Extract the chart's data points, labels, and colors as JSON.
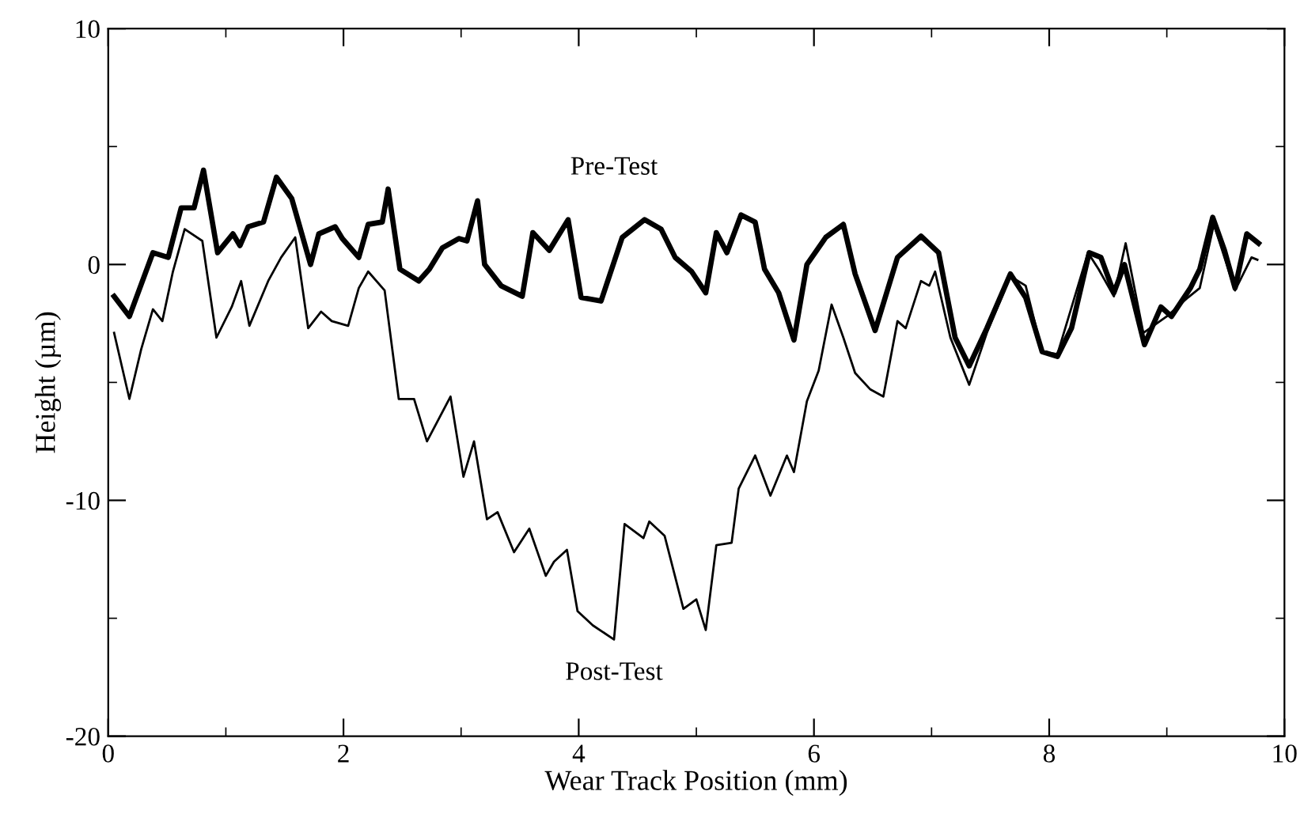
{
  "chart_data": {
    "type": "line",
    "xlabel": "Wear Track Position (mm)",
    "ylabel": "Height (µm)",
    "xlim": [
      0,
      10
    ],
    "ylim": [
      -20,
      10
    ],
    "xticks": [
      0,
      {
        "value": 1,
        "label": null
      },
      2,
      {
        "value": 3,
        "label": null
      },
      4,
      {
        "value": 5,
        "label": null
      },
      6,
      {
        "value": 7,
        "label": null
      },
      8,
      {
        "value": 9,
        "label": null
      },
      10
    ],
    "yticks": [
      -20,
      {
        "value": -15,
        "label": null
      },
      -10,
      {
        "value": -5,
        "label": null
      },
      0,
      {
        "value": 5,
        "label": null
      },
      10
    ],
    "grid": false,
    "legend": false,
    "marker": "none",
    "line_style": "solid",
    "series": [
      {
        "name": "Pre-Test",
        "color": "#000000",
        "x": [
          0.05,
          0.18,
          0.38,
          0.51,
          0.62,
          0.73,
          0.81,
          0.93,
          1.06,
          1.12,
          1.19,
          1.32,
          1.43,
          1.56,
          1.72,
          1.79,
          1.93,
          1.99,
          2.13,
          2.21,
          2.33,
          2.38,
          2.48,
          2.64,
          2.73,
          2.84,
          2.98,
          3.05,
          3.14,
          3.2,
          3.34,
          3.52,
          3.61,
          3.75,
          3.91,
          4.02,
          4.19,
          4.37,
          4.56,
          4.7,
          4.82,
          4.96,
          5.08,
          5.17,
          5.26,
          5.38,
          5.5,
          5.58,
          5.7,
          5.83,
          5.94,
          6.1,
          6.25,
          6.35,
          6.52,
          6.71,
          6.91,
          7.06,
          7.2,
          7.32,
          7.47,
          7.67,
          7.8,
          7.94,
          8.07,
          8.19,
          8.34,
          8.44,
          8.55,
          8.64,
          8.81,
          8.95,
          9.04,
          9.2,
          9.28,
          9.39,
          9.49,
          9.58,
          9.68,
          9.78
        ],
        "values": [
          -1.35,
          -2.2,
          0.5,
          0.3,
          2.4,
          2.4,
          4.0,
          0.5,
          1.3,
          0.8,
          1.6,
          1.8,
          3.7,
          2.8,
          0.0,
          1.3,
          1.6,
          1.1,
          0.3,
          1.7,
          1.8,
          3.2,
          -0.2,
          -0.7,
          -0.2,
          0.7,
          1.1,
          1.0,
          2.7,
          0.0,
          -0.9,
          -1.35,
          1.35,
          0.6,
          1.9,
          -1.4,
          -1.55,
          1.15,
          1.9,
          1.5,
          0.3,
          -0.3,
          -1.2,
          1.35,
          0.5,
          2.1,
          1.8,
          -0.2,
          -1.2,
          -3.2,
          0.0,
          1.15,
          1.7,
          -0.4,
          -2.8,
          0.3,
          1.2,
          0.5,
          -3.1,
          -4.3,
          -2.7,
          -0.4,
          -1.4,
          -3.7,
          -3.9,
          -2.7,
          0.5,
          0.3,
          -1.2,
          0.0,
          -3.4,
          -1.8,
          -2.2,
          -1.0,
          -0.2,
          2.0,
          0.6,
          -1.0,
          1.3,
          0.9
        ]
      },
      {
        "name": "Post-Test",
        "color": "#000000",
        "x": [
          0.05,
          0.18,
          0.28,
          0.38,
          0.46,
          0.55,
          0.65,
          0.8,
          0.92,
          1.05,
          1.13,
          1.2,
          1.36,
          1.47,
          1.59,
          1.7,
          1.81,
          1.9,
          2.04,
          2.13,
          2.21,
          2.35,
          2.47,
          2.6,
          2.71,
          2.91,
          3.02,
          3.11,
          3.22,
          3.31,
          3.45,
          3.58,
          3.72,
          3.79,
          3.9,
          3.99,
          4.12,
          4.3,
          4.39,
          4.55,
          4.6,
          4.73,
          4.89,
          5.0,
          5.08,
          5.17,
          5.3,
          5.36,
          5.5,
          5.63,
          5.77,
          5.83,
          5.94,
          6.04,
          6.15,
          6.25,
          6.35,
          6.48,
          6.59,
          6.71,
          6.78,
          6.91,
          6.98,
          7.03,
          7.16,
          7.32,
          7.47,
          7.67,
          7.8,
          7.94,
          8.07,
          8.33,
          8.42,
          8.55,
          8.65,
          8.8,
          9.0,
          9.18,
          9.28,
          9.4,
          9.58,
          9.72,
          9.77
        ],
        "values": [
          -2.9,
          -5.7,
          -3.6,
          -1.9,
          -2.4,
          -0.3,
          1.5,
          1.0,
          -3.1,
          -1.8,
          -0.7,
          -2.6,
          -0.7,
          0.3,
          1.15,
          -2.7,
          -2.0,
          -2.4,
          -2.6,
          -1.0,
          -0.3,
          -1.1,
          -5.7,
          -5.7,
          -7.5,
          -5.6,
          -9.0,
          -7.5,
          -10.8,
          -10.5,
          -12.2,
          -11.2,
          -13.2,
          -12.6,
          -12.1,
          -14.7,
          -15.3,
          -15.9,
          -11.0,
          -11.6,
          -10.9,
          -11.5,
          -14.6,
          -14.2,
          -15.5,
          -11.9,
          -11.8,
          -9.5,
          -8.1,
          -9.8,
          -8.1,
          -8.8,
          -5.8,
          -4.5,
          -1.7,
          -3.1,
          -4.6,
          -5.3,
          -5.6,
          -2.4,
          -2.7,
          -0.7,
          -0.9,
          -0.3,
          -3.1,
          -5.1,
          -2.9,
          -0.5,
          -0.9,
          -3.7,
          -3.8,
          0.5,
          -0.2,
          -1.35,
          0.9,
          -2.9,
          -2.2,
          -1.4,
          -1.0,
          1.7,
          -1.1,
          0.3,
          0.2
        ]
      }
    ]
  }
}
